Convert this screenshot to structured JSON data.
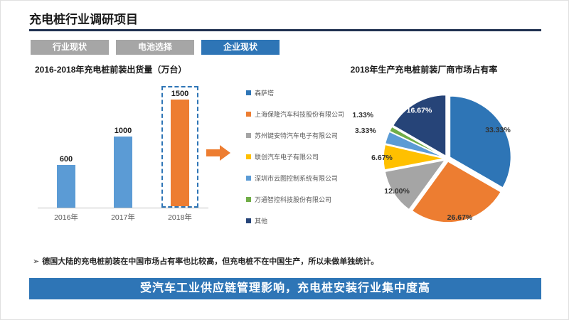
{
  "header": {
    "title": "充电桩行业调研项目"
  },
  "tabs": [
    {
      "label": "行业现状",
      "active": false
    },
    {
      "label": "电池选择",
      "active": false
    },
    {
      "label": "企业现状",
      "active": true
    }
  ],
  "chart_data": [
    {
      "type": "bar",
      "title": "2016-2018年充电桩前装出货量（万台）",
      "categories": [
        "2016年",
        "2017年",
        "2018年"
      ],
      "values": [
        600,
        1000,
        1500
      ],
      "bar_colors": [
        "#5B9BD5",
        "#5B9BD5",
        "#ED7D31"
      ],
      "highlight_index": 2,
      "ylim": [
        0,
        1500
      ],
      "grid": false
    },
    {
      "type": "pie",
      "title": "2018年生产充电桩前装厂商市场占有率",
      "labels": [
        "森萨塔",
        "上海保隆汽车科技股份有限公司",
        "苏州键安特汽车电子有限公司",
        "联创汽车电子有限公司",
        "深圳市云图控制系统有限公司",
        "万通智控科技股份有限公司",
        "其他"
      ],
      "values": [
        33.33,
        26.67,
        12.0,
        6.67,
        3.33,
        1.33,
        16.67
      ],
      "value_labels": [
        "33.33%",
        "26.67%",
        "12.00%",
        "6.67%",
        "3.33%",
        "1.33%",
        "16.67%"
      ],
      "colors": [
        "#2E75B6",
        "#ED7D31",
        "#A5A5A5",
        "#FFC000",
        "#5B9BD5",
        "#70AD47",
        "#264478"
      ],
      "legend_position": "left"
    }
  ],
  "note": {
    "marker": "➢",
    "text": "德国大陆的充电桩前装在中国市场占有率也比较高，但充电桩不在中国生产，所以未做单独统计。"
  },
  "footer": {
    "banner": "受汽车工业供应链管理影响，充电桩安装行业集中度高"
  },
  "colors": {
    "accent_blue": "#2E75B6",
    "tab_inactive": "#A6A6A6",
    "bar_blue": "#5B9BD5",
    "highlight_orange": "#ED7D31",
    "title_rule": "#1F3050"
  }
}
